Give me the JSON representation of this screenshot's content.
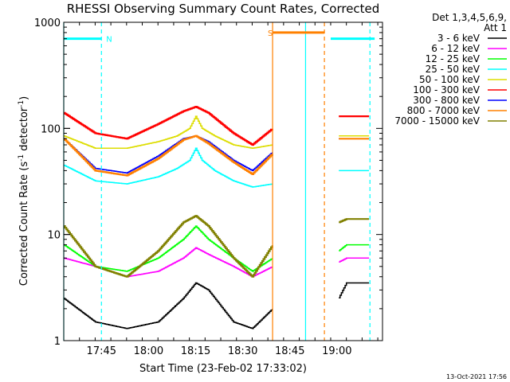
{
  "chart_data": {
    "type": "line",
    "title": "RHESSI Observing Summary Count Rates, Corrected",
    "xlabel": "Start Time (23-Feb-02 17:33:02)",
    "ylabel": "Corrected Count Rate (s",
    "ylabel_sup1": "-1",
    "ylabel_mid": " detector",
    "ylabel_sup2": "-1",
    "ylabel_end": ")",
    "y_scale": "log",
    "ylim": [
      1,
      1000
    ],
    "x_units": "minutes after 17:33:02",
    "xlim": [
      0,
      101.5
    ],
    "x_ticks": [
      {
        "x": 12,
        "label": "17:45"
      },
      {
        "x": 27,
        "label": "18:00"
      },
      {
        "x": 42,
        "label": "18:15"
      },
      {
        "x": 57,
        "label": "18:30"
      },
      {
        "x": 72,
        "label": "18:45"
      },
      {
        "x": 87,
        "label": "19:00"
      }
    ],
    "y_ticks": [
      {
        "y": 1,
        "label": "1"
      },
      {
        "y": 10,
        "label": "10"
      },
      {
        "y": 100,
        "label": "100"
      },
      {
        "y": 1000,
        "label": "1000"
      }
    ],
    "legend_title": [
      "Det 1,3,4,5,6,9,",
      "Att 1"
    ],
    "legend_position": "right",
    "data_gaps": [
      [
        66.5,
        87.5
      ]
    ],
    "series": [
      {
        "name": "3 - 6 keV",
        "color": "#000000",
        "x": [
          0,
          10,
          20,
          30,
          38,
          42,
          46,
          54,
          60,
          66.5,
          87.5,
          90,
          95,
          97.5
        ],
        "y": [
          2.5,
          1.5,
          1.3,
          1.5,
          2.5,
          3.5,
          3,
          1.5,
          1.3,
          2,
          2.5,
          3.5,
          3.5,
          3.5
        ]
      },
      {
        "name": "6 - 12 keV",
        "color": "#ff00ff",
        "x": [
          0,
          10,
          20,
          30,
          38,
          42,
          46,
          54,
          60,
          66.5,
          87.5,
          90,
          95,
          97.5
        ],
        "y": [
          6,
          5,
          4,
          4.5,
          6,
          7.5,
          6.5,
          5,
          4,
          5,
          5.5,
          6,
          6,
          6
        ]
      },
      {
        "name": "12 - 25 keV",
        "color": "#00ff00",
        "x": [
          0,
          10,
          20,
          30,
          38,
          42,
          46,
          54,
          60,
          66.5,
          87.5,
          90,
          95,
          97.5
        ],
        "y": [
          8,
          5,
          4.5,
          6,
          9,
          12,
          9,
          6,
          4.5,
          6,
          7,
          8,
          8,
          8
        ]
      },
      {
        "name": "25 - 50 keV",
        "color": "#00ffff",
        "x": [
          0,
          10,
          20,
          30,
          36,
          40,
          42,
          44,
          48,
          54,
          60,
          66.5,
          87.5,
          90,
          95,
          97.5
        ],
        "y": [
          45,
          32,
          30,
          35,
          42,
          50,
          65,
          50,
          40,
          32,
          28,
          30,
          40,
          40,
          40,
          40
        ]
      },
      {
        "name": "50 - 100 keV",
        "color": "#dddd00",
        "x": [
          0,
          10,
          20,
          30,
          36,
          40,
          42,
          44,
          48,
          54,
          60,
          66.5,
          87.5,
          90,
          95,
          97.5
        ],
        "y": [
          85,
          65,
          65,
          75,
          85,
          100,
          130,
          100,
          85,
          70,
          65,
          70,
          85,
          85,
          85,
          85
        ]
      },
      {
        "name": "100 - 300 keV",
        "color": "#ff0000",
        "x": [
          0,
          10,
          20,
          30,
          38,
          42,
          46,
          54,
          60,
          66.5,
          87.5,
          90,
          95,
          97.5
        ],
        "y": [
          140,
          90,
          80,
          110,
          145,
          160,
          140,
          90,
          70,
          100,
          130,
          130,
          130,
          130
        ]
      },
      {
        "name": "300 - 800 keV",
        "color": "#0000ff",
        "x": [
          0,
          10,
          20,
          30,
          38,
          42,
          46,
          54,
          60,
          66.5,
          87.5,
          90,
          95,
          97.5
        ],
        "y": [
          80,
          42,
          38,
          55,
          80,
          85,
          75,
          50,
          40,
          60,
          80,
          80,
          80,
          80
        ]
      },
      {
        "name": "800 - 7000 keV",
        "color": "#ff8000",
        "x": [
          0,
          10,
          20,
          30,
          38,
          42,
          46,
          54,
          60,
          66.5,
          87.5,
          90,
          95,
          97.5
        ],
        "y": [
          80,
          40,
          36,
          52,
          78,
          85,
          72,
          48,
          37,
          58,
          80,
          80,
          80,
          80
        ]
      },
      {
        "name": "7000 - 15000 keV",
        "color": "#808000",
        "x": [
          0,
          10,
          20,
          30,
          38,
          42,
          46,
          54,
          60,
          66.5,
          87.5,
          90,
          95,
          97.5
        ],
        "y": [
          12,
          5,
          4,
          7,
          13,
          15,
          12,
          6,
          4,
          8,
          13,
          14,
          14,
          14
        ]
      }
    ],
    "flags": [
      {
        "name": "N",
        "color": "#00ffff",
        "bars": [
          [
            0,
            12
          ],
          [
            85,
            99
          ]
        ],
        "level": 700,
        "vlines": [
          0,
          12,
          77,
          97.5
        ]
      },
      {
        "name": "S",
        "color": "#ff8000",
        "bars": [
          [
            66.5,
            83
          ]
        ],
        "level": 800,
        "vlines": [
          66.5,
          83
        ]
      }
    ],
    "footer_date": "13-Oct-2021 17:56"
  }
}
